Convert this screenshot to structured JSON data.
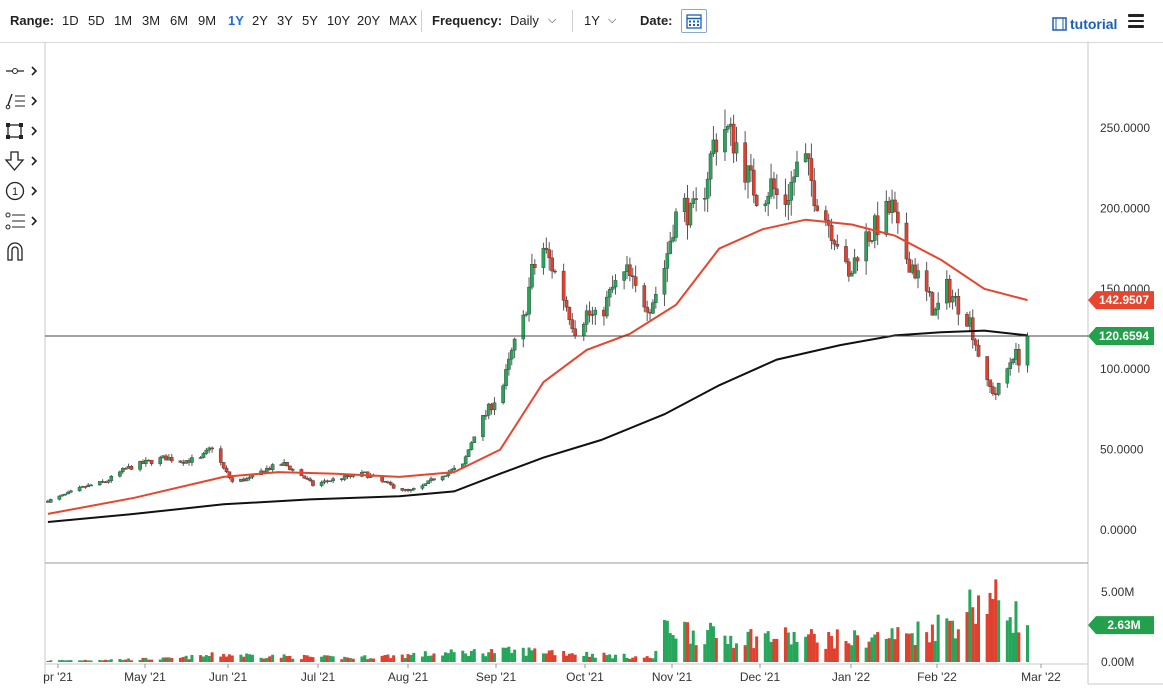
{
  "toolbar": {
    "range_label": "Range:",
    "ranges": [
      "1D",
      "5D",
      "1M",
      "3M",
      "6M",
      "9M",
      "1Y",
      "2Y",
      "3Y",
      "5Y",
      "10Y",
      "20Y",
      "MAX"
    ],
    "active_range": "1Y",
    "frequency_label": "Frequency:",
    "frequency_value": "Daily",
    "period_value": "1Y",
    "date_label": "Date:",
    "tutorial_label": "tutorial"
  },
  "tools": [
    "crosshair-icon",
    "line-tools-icon",
    "shape-tools-icon",
    "arrow-down-icon",
    "annotation-number-icon",
    "fibonacci-icon",
    "magnet-icon"
  ],
  "chart_data": {
    "type": "candlestick",
    "price_axis": {
      "min": 0,
      "max": 250,
      "ticks": [
        "0.0000",
        "50.0000",
        "100.0000",
        "150.0000",
        "200.0000",
        "250.0000"
      ]
    },
    "volume_axis": {
      "min": 0,
      "max": 5000000,
      "ticks": [
        "0.00M",
        "5.00M"
      ]
    },
    "x_ticks": [
      "pr '21",
      "May '21",
      "Jun '21",
      "Jul '21",
      "Aug '21",
      "Sep '21",
      "Oct '21",
      "Nov '21",
      "Dec '21",
      "Jan '22",
      "Feb '22",
      "Mar '22"
    ],
    "x_range": [
      "2021-03-31",
      "2022-03-28"
    ],
    "last_price": 120.6594,
    "last_price_label": "120.6594",
    "sma_red_last": 142.9507,
    "sma_red_label": "142.9507",
    "last_volume_label": "2.63M",
    "colors": {
      "up": "#26a65b",
      "down": "#e0402e",
      "sma_short": "#e8452e",
      "sma_long": "#111111"
    },
    "price_path": [
      [
        "2021-04-01",
        18
      ],
      [
        "2021-04-07",
        22
      ],
      [
        "2021-04-14",
        27
      ],
      [
        "2021-04-21",
        30
      ],
      [
        "2021-04-28",
        38
      ],
      [
        "2021-05-05",
        42
      ],
      [
        "2021-05-12",
        45
      ],
      [
        "2021-05-17",
        43
      ],
      [
        "2021-05-24",
        44
      ],
      [
        "2021-05-28",
        52
      ],
      [
        "2021-06-01",
        38
      ],
      [
        "2021-06-04",
        30
      ],
      [
        "2021-06-10",
        32
      ],
      [
        "2021-06-16",
        38
      ],
      [
        "2021-06-22",
        41
      ],
      [
        "2021-06-28",
        34
      ],
      [
        "2021-07-02",
        28
      ],
      [
        "2021-07-08",
        31
      ],
      [
        "2021-07-14",
        33
      ],
      [
        "2021-07-20",
        35
      ],
      [
        "2021-07-26",
        30
      ],
      [
        "2021-07-30",
        27
      ],
      [
        "2021-08-04",
        24
      ],
      [
        "2021-08-09",
        27
      ],
      [
        "2021-08-13",
        32
      ],
      [
        "2021-08-18",
        36
      ],
      [
        "2021-08-23",
        40
      ],
      [
        "2021-08-27",
        60
      ],
      [
        "2021-09-01",
        75
      ],
      [
        "2021-09-06",
        90
      ],
      [
        "2021-09-09",
        110
      ],
      [
        "2021-09-13",
        130
      ],
      [
        "2021-09-16",
        160
      ],
      [
        "2021-09-20",
        175
      ],
      [
        "2021-09-24",
        160
      ],
      [
        "2021-09-28",
        140
      ],
      [
        "2021-10-01",
        125
      ],
      [
        "2021-10-05",
        135
      ],
      [
        "2021-10-09",
        130
      ],
      [
        "2021-10-14",
        150
      ],
      [
        "2021-10-19",
        160
      ],
      [
        "2021-10-23",
        145
      ],
      [
        "2021-10-27",
        140
      ],
      [
        "2021-10-31",
        155
      ],
      [
        "2021-11-04",
        190
      ],
      [
        "2021-11-07",
        205
      ],
      [
        "2021-11-10",
        195
      ],
      [
        "2021-11-14",
        205
      ],
      [
        "2021-11-18",
        240
      ],
      [
        "2021-11-22",
        250
      ],
      [
        "2021-11-26",
        240
      ],
      [
        "2021-11-30",
        220
      ],
      [
        "2021-12-04",
        205
      ],
      [
        "2021-12-08",
        215
      ],
      [
        "2021-12-12",
        200
      ],
      [
        "2021-12-15",
        215
      ],
      [
        "2021-12-19",
        235
      ],
      [
        "2021-12-23",
        210
      ],
      [
        "2021-12-27",
        195
      ],
      [
        "2021-12-31",
        180
      ],
      [
        "2022-01-04",
        155
      ],
      [
        "2022-01-08",
        180
      ],
      [
        "2022-01-12",
        185
      ],
      [
        "2022-01-16",
        195
      ],
      [
        "2022-01-19",
        200
      ],
      [
        "2022-01-22",
        175
      ],
      [
        "2022-01-26",
        165
      ],
      [
        "2022-01-30",
        150
      ],
      [
        "2022-02-03",
        135
      ],
      [
        "2022-02-07",
        150
      ],
      [
        "2022-02-11",
        140
      ],
      [
        "2022-02-15",
        130
      ],
      [
        "2022-02-18",
        110
      ],
      [
        "2022-02-21",
        90
      ],
      [
        "2022-02-24",
        85
      ],
      [
        "2022-02-27",
        95
      ],
      [
        "2022-03-02",
        110
      ],
      [
        "2022-03-05",
        105
      ],
      [
        "2022-03-07",
        120.66
      ]
    ],
    "sma_short_path": [
      [
        "2021-04-01",
        10
      ],
      [
        "2021-05-01",
        20
      ],
      [
        "2021-06-01",
        33
      ],
      [
        "2021-06-20",
        36
      ],
      [
        "2021-07-10",
        35
      ],
      [
        "2021-08-01",
        33
      ],
      [
        "2021-08-20",
        36
      ],
      [
        "2021-09-05",
        50
      ],
      [
        "2021-09-20",
        92
      ],
      [
        "2021-10-05",
        112
      ],
      [
        "2021-10-20",
        122
      ],
      [
        "2021-11-05",
        140
      ],
      [
        "2021-11-20",
        175
      ],
      [
        "2021-12-05",
        187
      ],
      [
        "2021-12-20",
        193
      ],
      [
        "2022-01-05",
        190
      ],
      [
        "2022-01-20",
        183
      ],
      [
        "2022-02-05",
        168
      ],
      [
        "2022-02-20",
        150
      ],
      [
        "2022-03-07",
        142.95
      ]
    ],
    "sma_long_path": [
      [
        "2021-04-01",
        5
      ],
      [
        "2021-05-01",
        10
      ],
      [
        "2021-06-01",
        16
      ],
      [
        "2021-07-01",
        19
      ],
      [
        "2021-08-01",
        21
      ],
      [
        "2021-08-20",
        24
      ],
      [
        "2021-09-05",
        35
      ],
      [
        "2021-09-20",
        45
      ],
      [
        "2021-10-10",
        56
      ],
      [
        "2021-11-01",
        72
      ],
      [
        "2021-11-20",
        90
      ],
      [
        "2021-12-10",
        106
      ],
      [
        "2022-01-01",
        115
      ],
      [
        "2022-01-20",
        121
      ],
      [
        "2022-02-05",
        123
      ],
      [
        "2022-02-20",
        124
      ],
      [
        "2022-03-07",
        121
      ]
    ],
    "volume_profile": [
      [
        "2021-04-01",
        0.1
      ],
      [
        "2021-05-15",
        0.25
      ],
      [
        "2021-06-01",
        0.55
      ],
      [
        "2021-06-20",
        0.4
      ],
      [
        "2021-07-15",
        0.3
      ],
      [
        "2021-08-15",
        0.6
      ],
      [
        "2021-09-01",
        0.75
      ],
      [
        "2021-09-20",
        0.8
      ],
      [
        "2021-10-10",
        0.5
      ],
      [
        "2021-10-28",
        0.3
      ],
      [
        "2021-11-02",
        2.6
      ],
      [
        "2021-11-20",
        1.8
      ],
      [
        "2021-12-10",
        1.8
      ],
      [
        "2022-01-05",
        1.6
      ],
      [
        "2022-01-25",
        2.0
      ],
      [
        "2022-02-10",
        3.0
      ],
      [
        "2022-02-18",
        4.5
      ],
      [
        "2022-02-25",
        4.4
      ],
      [
        "2022-03-07",
        2.63
      ]
    ]
  }
}
